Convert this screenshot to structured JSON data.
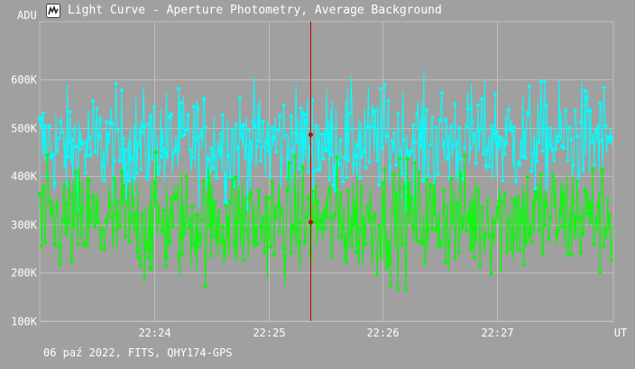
{
  "window": {
    "title": "Light Curve - Aperture Photometry, Average Background",
    "icon": "light-curve-app-icon"
  },
  "footer": {
    "text": "06 paź 2022, FITS, QHY174-GPS"
  },
  "colors": {
    "background": "#a0a0a0",
    "grid": "#bdbdbd",
    "text": "#ffffff",
    "series_cyan": "#00ffff",
    "series_green": "#00ff00",
    "cursor": "#cc0000"
  },
  "chart_data": {
    "type": "line",
    "ylabel": "ADU",
    "xlabel": "UT",
    "grid": true,
    "y_ticks": [
      {
        "value": 100000,
        "label": "100K"
      },
      {
        "value": 200000,
        "label": "200K"
      },
      {
        "value": 300000,
        "label": "300K"
      },
      {
        "value": 400000,
        "label": "400K"
      },
      {
        "value": 500000,
        "label": "500K"
      },
      {
        "value": 600000,
        "label": "600K"
      }
    ],
    "x_ticks": [
      {
        "value": "22:24",
        "label": "22:24"
      },
      {
        "value": "22:25",
        "label": "22:25"
      },
      {
        "value": "22:26",
        "label": "22:26"
      },
      {
        "value": "22:27",
        "label": "22:27"
      }
    ],
    "xlim": [
      "22:23:00",
      "22:28:01"
    ],
    "ylim": [
      100000,
      720000
    ],
    "cursor_time": "22:25:22",
    "cursor_values": [
      486000,
      305000
    ],
    "sample_interval_seconds": 0.5,
    "series": [
      {
        "color": "#00ffff",
        "mean_adu": 470000,
        "typical_min_adu": 350000,
        "typical_max_adu": 640000
      },
      {
        "color": "#00ff00",
        "mean_adu": 310000,
        "typical_min_adu": 140000,
        "typical_max_adu": 440000
      }
    ]
  }
}
